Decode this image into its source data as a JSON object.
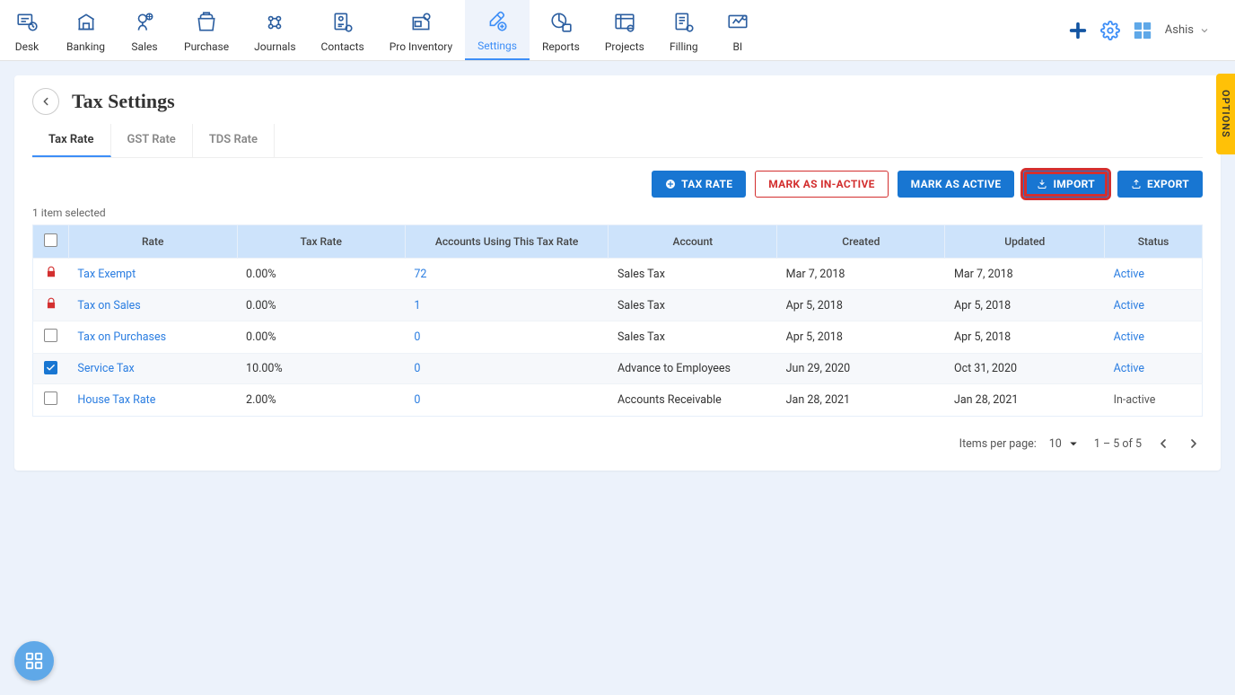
{
  "nav": {
    "items": [
      {
        "label": "Desk"
      },
      {
        "label": "Banking"
      },
      {
        "label": "Sales"
      },
      {
        "label": "Purchase"
      },
      {
        "label": "Journals"
      },
      {
        "label": "Contacts"
      },
      {
        "label": "Pro Inventory"
      },
      {
        "label": "Settings"
      },
      {
        "label": "Reports"
      },
      {
        "label": "Projects"
      },
      {
        "label": "Filling"
      },
      {
        "label": "BI"
      }
    ],
    "active_index": 7
  },
  "user": {
    "name": "Ashis"
  },
  "page": {
    "title": "Tax Settings"
  },
  "tabs": {
    "items": [
      "Tax Rate",
      "GST Rate",
      "TDS Rate"
    ],
    "active_index": 0
  },
  "actions": {
    "tax_rate": "TAX RATE",
    "mark_inactive": "MARK AS IN-ACTIVE",
    "mark_active": "MARK AS ACTIVE",
    "import": "IMPORT",
    "export": "EXPORT"
  },
  "selection_info": "1 item selected",
  "table": {
    "headers": {
      "rate": "Rate",
      "tax_rate": "Tax Rate",
      "accounts_using": "Accounts Using This Tax Rate",
      "account": "Account",
      "created": "Created",
      "updated": "Updated",
      "status": "Status"
    },
    "rows": [
      {
        "locked": true,
        "checked": false,
        "rate": "Tax Exempt",
        "tax_rate": "0.00%",
        "accounts": "72",
        "account": "Sales Tax",
        "created": "Mar 7, 2018",
        "updated": "Mar 7, 2018",
        "status": "Active",
        "status_active": true
      },
      {
        "locked": true,
        "checked": false,
        "rate": "Tax on Sales",
        "tax_rate": "0.00%",
        "accounts": "1",
        "account": "Sales Tax",
        "created": "Apr 5, 2018",
        "updated": "Apr 5, 2018",
        "status": "Active",
        "status_active": true
      },
      {
        "locked": false,
        "checked": false,
        "rate": "Tax on Purchases",
        "tax_rate": "0.00%",
        "accounts": "0",
        "account": "Sales Tax",
        "created": "Apr 5, 2018",
        "updated": "Apr 5, 2018",
        "status": "Active",
        "status_active": true
      },
      {
        "locked": false,
        "checked": true,
        "rate": "Service Tax",
        "tax_rate": "10.00%",
        "accounts": "0",
        "account": "Advance to Employees",
        "created": "Jun 29, 2020",
        "updated": "Oct 31, 2020",
        "status": "Active",
        "status_active": true
      },
      {
        "locked": false,
        "checked": false,
        "rate": "House Tax Rate",
        "tax_rate": "2.00%",
        "accounts": "0",
        "account": "Accounts Receivable",
        "created": "Jan 28, 2021",
        "updated": "Jan 28, 2021",
        "status": "In-active",
        "status_active": false
      }
    ]
  },
  "pagination": {
    "items_per_page_label": "Items per page:",
    "items_per_page_value": "10",
    "range": "1 – 5 of 5"
  },
  "options_tab": "OPTIONS",
  "colors": {
    "accent": "#1876d2",
    "accent_light": "#cde3fb",
    "danger": "#d32f2f",
    "warn": "#ffc107",
    "bg": "#ecf2fb"
  }
}
